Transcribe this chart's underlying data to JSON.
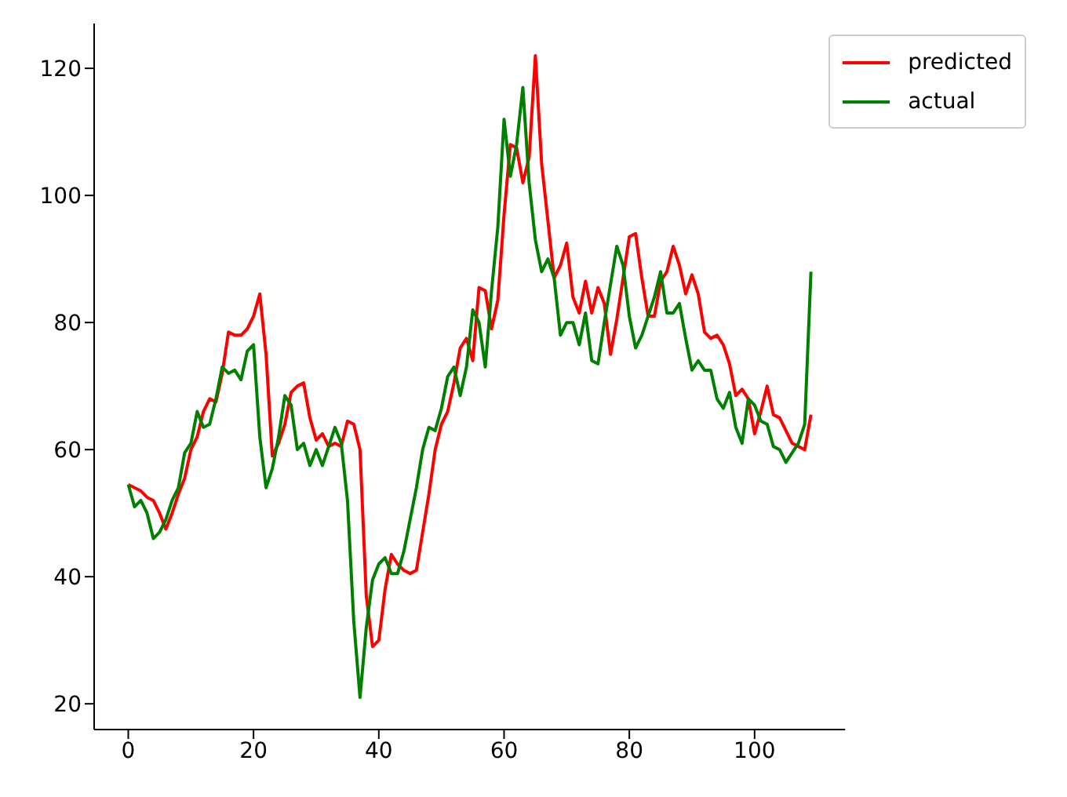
{
  "chart_data": {
    "type": "line",
    "x": [
      0,
      1,
      2,
      3,
      4,
      5,
      6,
      7,
      8,
      9,
      10,
      11,
      12,
      13,
      14,
      15,
      16,
      17,
      18,
      19,
      20,
      21,
      22,
      23,
      24,
      25,
      26,
      27,
      28,
      29,
      30,
      31,
      32,
      33,
      34,
      35,
      36,
      37,
      38,
      39,
      40,
      41,
      42,
      43,
      44,
      45,
      46,
      47,
      48,
      49,
      50,
      51,
      52,
      53,
      54,
      55,
      56,
      57,
      58,
      59,
      60,
      61,
      62,
      63,
      64,
      65,
      66,
      67,
      68,
      69,
      70,
      71,
      72,
      73,
      74,
      75,
      76,
      77,
      78,
      79,
      80,
      81,
      82,
      83,
      84,
      85,
      86,
      87,
      88,
      89,
      90,
      91,
      92,
      93,
      94,
      95,
      96,
      97,
      98,
      99,
      100,
      101,
      102,
      103,
      104,
      105,
      106,
      107,
      108,
      109
    ],
    "series": [
      {
        "name": "predicted",
        "color": "#ff0000",
        "values": [
          54.5,
          54,
          53.5,
          52.5,
          52,
          50,
          47.5,
          50,
          53,
          55.5,
          60,
          62,
          66,
          68,
          67.5,
          72,
          78.5,
          78,
          78,
          79,
          81,
          84.5,
          75,
          59,
          61,
          64,
          69,
          70,
          70.5,
          65,
          61.5,
          62.5,
          60.5,
          61,
          60.5,
          64.5,
          64,
          60,
          37,
          29,
          30,
          38,
          43.5,
          42,
          41,
          40.5,
          41,
          47,
          53,
          60,
          64,
          66,
          70.5,
          76,
          77.5,
          74,
          85.5,
          85,
          79,
          83.5,
          97,
          108,
          107.5,
          102,
          106,
          122,
          105,
          96,
          87,
          89,
          92.5,
          84,
          81.5,
          86.5,
          81.5,
          85.5,
          83,
          75,
          80.5,
          87,
          93.5,
          94,
          87,
          81,
          81,
          86.5,
          88,
          92,
          89,
          84.5,
          87.5,
          84.5,
          78.5,
          77.5,
          78,
          76.5,
          73.5,
          68.5,
          69.5,
          68,
          62.5,
          66,
          70,
          65.5,
          65,
          63,
          61,
          60.5,
          60,
          65.5
        ]
      },
      {
        "name": "actual",
        "color": "#008000",
        "values": [
          54.5,
          51,
          52,
          50,
          46,
          47,
          49,
          52,
          54,
          59.5,
          61,
          66,
          63.5,
          64,
          68,
          73,
          72,
          72.5,
          71,
          75.5,
          76.5,
          62,
          54,
          57,
          62,
          68.5,
          67,
          60,
          61,
          57.5,
          60,
          57.5,
          60.5,
          63.5,
          61,
          52,
          33,
          21,
          32,
          39.5,
          42,
          43,
          40.5,
          40.5,
          44,
          49,
          54,
          60,
          63.5,
          63,
          66.5,
          71.5,
          73,
          68.5,
          73,
          82,
          80,
          73,
          85,
          95,
          112,
          103,
          108,
          117,
          102,
          93,
          88,
          90,
          87,
          78,
          80,
          80,
          76.5,
          81.5,
          74,
          73.5,
          80,
          86,
          92,
          89,
          81,
          76,
          78,
          81,
          84,
          88,
          81.5,
          81.5,
          83,
          77.5,
          72.5,
          74,
          72.5,
          72.5,
          68,
          66.5,
          69,
          63.5,
          61,
          68,
          67,
          64.5,
          64,
          60.5,
          60,
          58,
          59.5,
          61,
          64,
          88
        ]
      }
    ],
    "xlim": [
      -5.45,
      114.45
    ],
    "xticks": [
      0,
      20,
      40,
      60,
      80,
      100
    ],
    "ylim": [
      15.95,
      127.05
    ],
    "yticks": [
      20,
      40,
      60,
      80,
      100,
      120
    ],
    "legend": "top right",
    "grid": false
  }
}
